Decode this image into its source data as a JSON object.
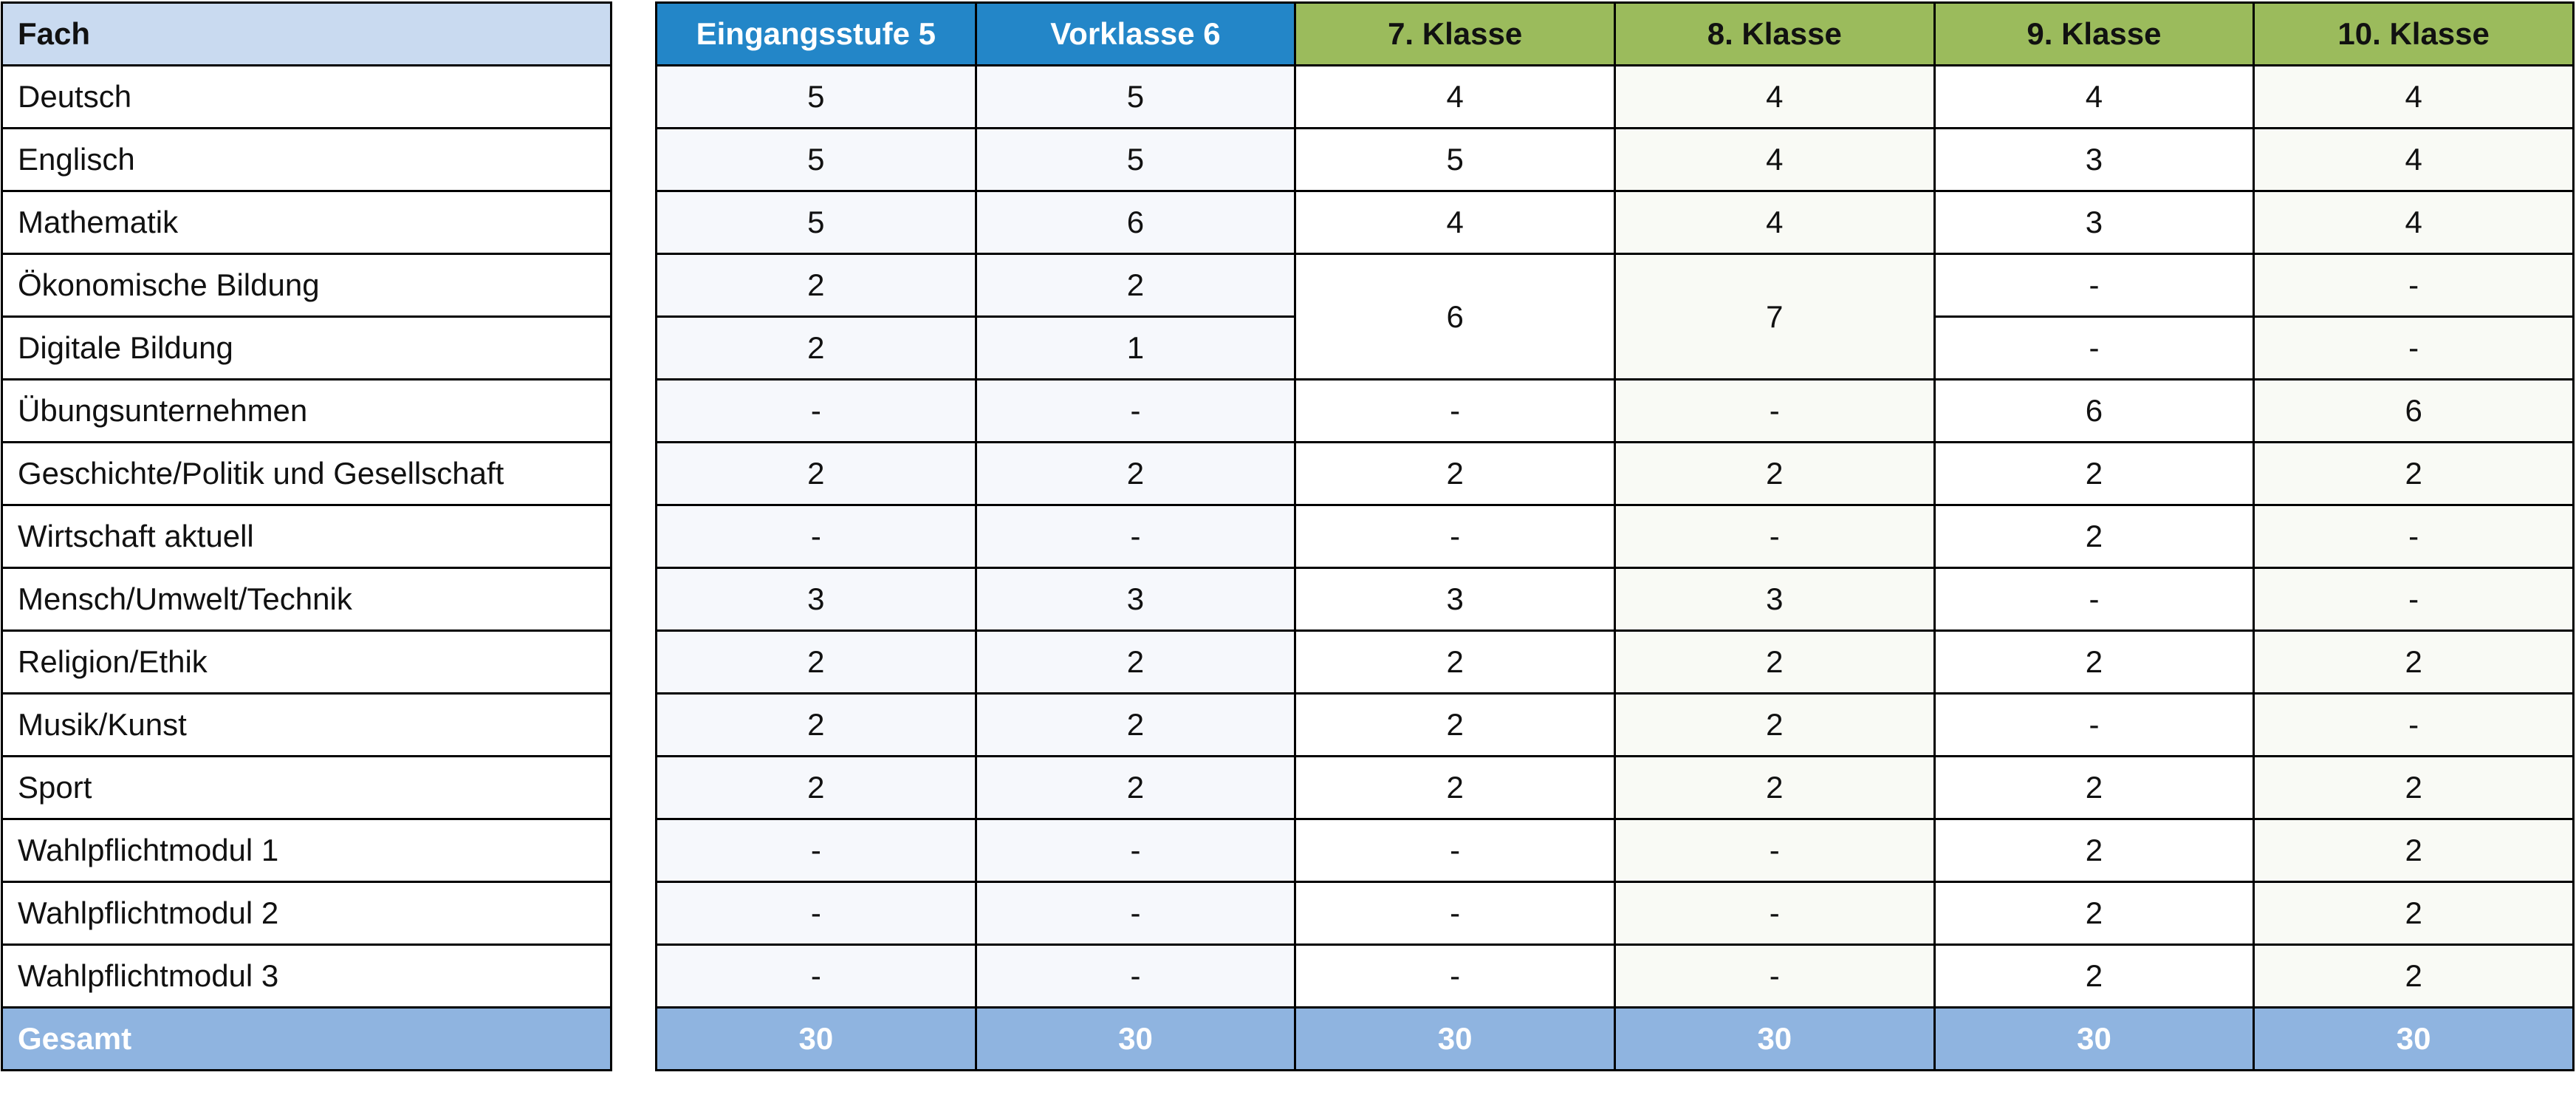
{
  "subject_header": "Fach",
  "columns": [
    {
      "label": "Eingangsstufe 5",
      "color": "#2386c8"
    },
    {
      "label": "Vorklasse 6",
      "color": "#2386c8"
    },
    {
      "label": "7. Klasse",
      "color": "#9bbb5c"
    },
    {
      "label": "8. Klasse",
      "color": "#9bbb5c"
    },
    {
      "label": "9. Klasse",
      "color": "#9bbb5c"
    },
    {
      "label": "10. Klasse",
      "color": "#9bbb5c"
    }
  ],
  "rows": [
    {
      "subject": "Deutsch",
      "values": [
        "5",
        "5",
        "4",
        "4",
        "4",
        "4"
      ]
    },
    {
      "subject": "Englisch",
      "values": [
        "5",
        "5",
        "5",
        "4",
        "3",
        "4"
      ]
    },
    {
      "subject": "Mathematik",
      "values": [
        "5",
        "6",
        "4",
        "4",
        "3",
        "4"
      ]
    },
    {
      "subject": "Ökonomische Bildung",
      "values": [
        "2",
        "2",
        {
          "v": "6",
          "rowspan": 2
        },
        {
          "v": "7",
          "rowspan": 2
        },
        "-",
        "-"
      ]
    },
    {
      "subject": "Digitale Bildung",
      "values": [
        "2",
        "1",
        null,
        null,
        "-",
        "-"
      ]
    },
    {
      "subject": "Übungsunternehmen",
      "values": [
        "-",
        "-",
        "-",
        "-",
        "6",
        "6"
      ]
    },
    {
      "subject": "Geschichte/Politik und Gesellschaft",
      "values": [
        "2",
        "2",
        "2",
        "2",
        "2",
        "2"
      ]
    },
    {
      "subject": "Wirtschaft aktuell",
      "values": [
        "-",
        "-",
        "-",
        "-",
        "2",
        "-"
      ]
    },
    {
      "subject": "Mensch/Umwelt/Technik",
      "values": [
        "3",
        "3",
        "3",
        "3",
        "-",
        "-"
      ]
    },
    {
      "subject": "Religion/Ethik",
      "values": [
        "2",
        "2",
        "2",
        "2",
        "2",
        "2"
      ]
    },
    {
      "subject": "Musik/Kunst",
      "values": [
        "2",
        "2",
        "2",
        "2",
        "-",
        "-"
      ]
    },
    {
      "subject": "Sport",
      "values": [
        "2",
        "2",
        "2",
        "2",
        "2",
        "2"
      ]
    },
    {
      "subject": "Wahlpflichtmodul 1",
      "values": [
        "-",
        "-",
        "-",
        "-",
        "2",
        "2"
      ]
    },
    {
      "subject": "Wahlpflichtmodul 2",
      "values": [
        "-",
        "-",
        "-",
        "-",
        "2",
        "2"
      ]
    },
    {
      "subject": "Wahlpflichtmodul 3",
      "values": [
        "-",
        "-",
        "-",
        "-",
        "2",
        "2"
      ]
    }
  ],
  "total": {
    "label": "Gesamt",
    "values": [
      "30",
      "30",
      "30",
      "30",
      "30",
      "30"
    ],
    "color": "#8fb4e0"
  }
}
